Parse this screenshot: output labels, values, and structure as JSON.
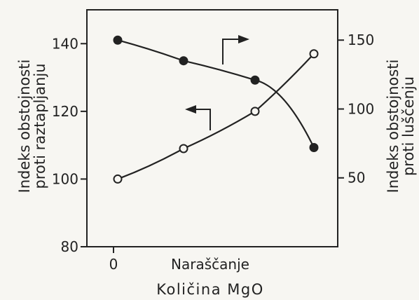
{
  "chart_data": {
    "type": "line",
    "xlabel": "Količina MgO",
    "x_tick_labels": [
      "0",
      "Naraščanje"
    ],
    "left_axis": {
      "label_line1": "Indeks obstojnosti",
      "label_line2": "proti raztapljanju",
      "ylim": [
        80,
        150
      ],
      "ticks": [
        80,
        100,
        120,
        140
      ]
    },
    "right_axis": {
      "label_line1": "Indeks obstojnosti",
      "label_line2": "proti luščenju",
      "ylim": [
        0,
        172
      ],
      "ticks": [
        50,
        100,
        150
      ]
    },
    "x": [
      0,
      1,
      2,
      3
    ],
    "series": [
      {
        "axis": "right",
        "marker": "filled",
        "values": [
          150,
          135,
          121,
          72
        ]
      },
      {
        "axis": "left",
        "marker": "open",
        "values": [
          100,
          109,
          120,
          137
        ]
      }
    ],
    "colors": {
      "ink": "#222222",
      "background": "#f7f6f2"
    }
  }
}
